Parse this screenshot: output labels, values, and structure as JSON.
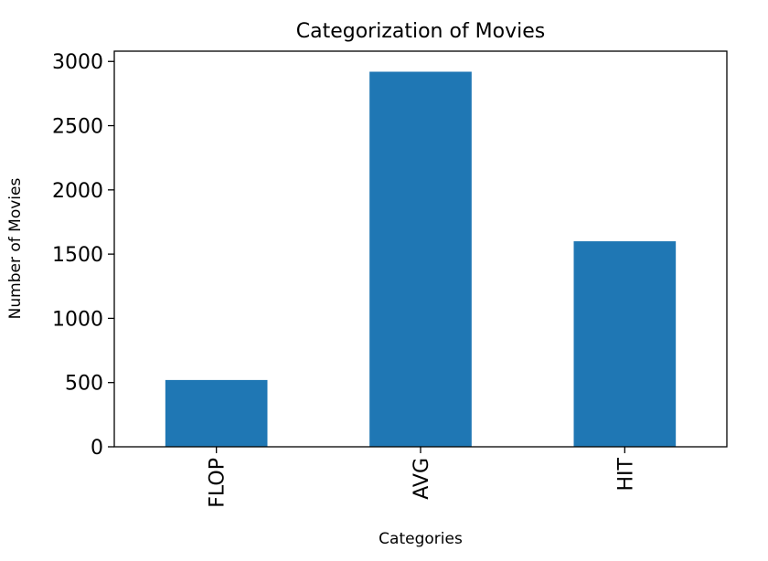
{
  "chart_data": {
    "type": "bar",
    "title": "Categorization of Movies",
    "xlabel": "Categories",
    "ylabel": "Number of Movies",
    "categories": [
      "FLOP",
      "AVG",
      "HIT"
    ],
    "values": [
      520,
      2920,
      1600
    ],
    "ylim": [
      0,
      3080
    ],
    "yticks": [
      0,
      500,
      1000,
      1500,
      2000,
      2500,
      3000
    ],
    "grid": false,
    "legend": "none",
    "bar_color": "#1f77b4"
  }
}
